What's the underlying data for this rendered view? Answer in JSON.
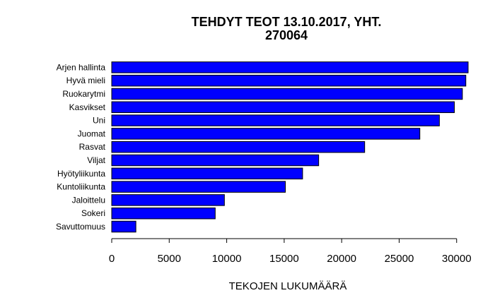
{
  "chart_data": {
    "type": "bar",
    "orientation": "horizontal",
    "title_lines": [
      "TEHDYT TEOT 13.10.2017, YHT.",
      "270064"
    ],
    "xlabel": "TEKOJEN LUKUMÄÄRÄ",
    "ylabel": "",
    "categories": [
      "Arjen hallinta",
      "Hyvä mieli",
      "Ruokarytmi",
      "Kasvikset",
      "Uni",
      "Juomat",
      "Rasvat",
      "Viljat",
      "Hyötyliikunta",
      "Kuntoliikunta",
      "Jaloittelu",
      "Sokeri",
      "Savuttomuus"
    ],
    "values": [
      31000,
      30800,
      30500,
      29800,
      28500,
      26800,
      22000,
      18000,
      16600,
      15100,
      9800,
      9000,
      2100
    ],
    "xlim": [
      0,
      31000
    ],
    "xticks": [
      0,
      5000,
      10000,
      15000,
      20000,
      25000,
      30000
    ],
    "bar_color": "#0000ff",
    "grid": false,
    "legend": "none"
  }
}
